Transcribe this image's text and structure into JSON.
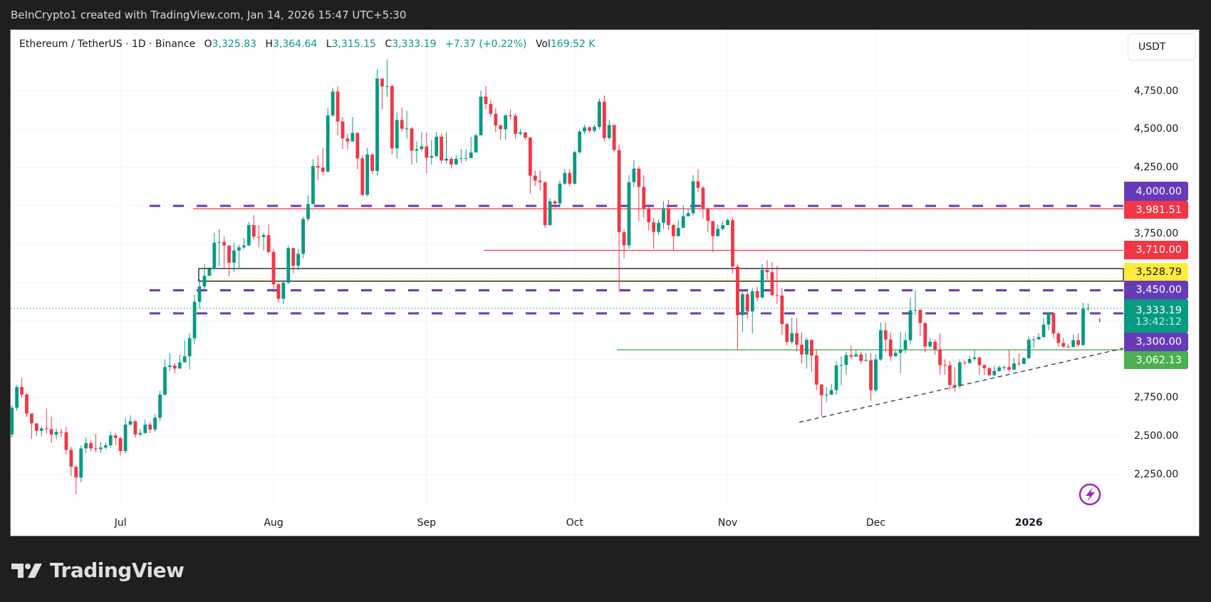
{
  "topbar": {
    "credit": "BeInCrypto1 created with TradingView.com, Jan 14, 2026 15:47 UTC+5:30"
  },
  "legend": {
    "symbol": "Ethereum / TetherUS · 1D · Binance",
    "o_label": "O",
    "o": "3,325.83",
    "h_label": "H",
    "h": "3,364.64",
    "l_label": "L",
    "l": "3,315.15",
    "c_label": "C",
    "c": "3,333.19",
    "change": "+7.37 (+0.22%)",
    "vol_label": "Vol",
    "vol": "169.52 K"
  },
  "currency_button": "USDT",
  "footer": {
    "logo_text": "TradingView"
  },
  "icons": {
    "logo": "tradingview-logo-icon",
    "alert": "lightning-icon"
  },
  "colors": {
    "up": "#089981",
    "down": "#f23645",
    "purple": "#673ab7",
    "red": "#f23645",
    "yellow": "#ffeb3b",
    "green": "#4caf50",
    "trend": "#333333"
  },
  "chart_data": {
    "type": "candlestick",
    "symbol": "ETHUSDT",
    "interval": "1D",
    "exchange": "Binance",
    "ylim": [
      2050,
      5000
    ],
    "y_ticks": [
      "4,750.00",
      "4,500.00",
      "4,250.00",
      "3,750.00",
      "2,750.00",
      "2,500.00",
      "2,250.00"
    ],
    "y_tick_values": [
      4750,
      4500,
      4250,
      3750,
      2750,
      2500,
      2250
    ],
    "x_ticks": [
      "Jul",
      "Aug",
      "Sep",
      "Oct",
      "Nov",
      "Dec",
      "2026"
    ],
    "grid": true,
    "first_open": 2510,
    "close": [
      2685,
      2820,
      2771,
      2647,
      2583,
      2535,
      2550,
      2545,
      2510,
      2527,
      2525,
      2410,
      2300,
      2230,
      2420,
      2455,
      2420,
      2415,
      2425,
      2440,
      2505,
      2488,
      2403,
      2575,
      2597,
      2510,
      2520,
      2575,
      2543,
      2620,
      2770,
      2950,
      2960,
      2940,
      2980,
      3020,
      3138,
      3375,
      3475,
      3545,
      3590,
      3760,
      3765,
      3742,
      3630,
      3710,
      3730,
      3742,
      3875,
      3800,
      3797,
      3810,
      3700,
      3490,
      3395,
      3500,
      3725,
      3610,
      3688,
      3915,
      4012,
      4260,
      4250,
      4223,
      4590,
      4745,
      4550,
      4440,
      4420,
      4475,
      4310,
      4072,
      4335,
      4228,
      4830,
      4778,
      4780,
      4375,
      4560,
      4503,
      4505,
      4360,
      4370,
      4388,
      4314,
      4325,
      4451,
      4296,
      4307,
      4270,
      4307,
      4310,
      4312,
      4348,
      4460,
      4712,
      4664,
      4600,
      4525,
      4500,
      4590,
      4588,
      4470,
      4480,
      4445,
      4197,
      4165,
      4155,
      3875,
      4030,
      4016,
      4145,
      4215,
      4145,
      4350,
      4485,
      4512,
      4490,
      4515,
      4680,
      4442,
      4527,
      4365,
      3829,
      3743,
      4155,
      4243,
      4124,
      3980,
      3893,
      3830,
      3890,
      3981,
      3875,
      3803,
      3857,
      3933,
      3953,
      4160,
      4118,
      3980,
      3902,
      3803,
      3850,
      3875,
      3907,
      3605,
      3288,
      3425,
      3312,
      3444,
      3403,
      3583,
      3568,
      3418,
      3416,
      3230,
      3114,
      3171,
      3096,
      3032,
      3127,
      3025,
      2836,
      2766,
      2770,
      2800,
      2960,
      2963,
      3028,
      3018,
      3033,
      2990,
      2995,
      2799,
      3000,
      3190,
      3130,
      3020,
      3042,
      3065,
      3125,
      3320,
      3322,
      3237,
      3084,
      3115,
      3064,
      2963,
      2961,
      2833,
      2826,
      2980,
      2977,
      3003,
      3012,
      2963,
      2942,
      2897,
      2924,
      2948,
      2950,
      2933,
      2973,
      2970,
      3008,
      3129,
      3130,
      3146,
      3227,
      3300,
      3168,
      3107,
      3083,
      3080,
      3125,
      3094,
      3330,
      3333.19
    ],
    "high": [
      2700,
      2835,
      2880,
      2780,
      2645,
      2585,
      2565,
      2680,
      2627,
      2550,
      2547,
      2560,
      2430,
      2310,
      2440,
      2490,
      2475,
      2515,
      2460,
      2460,
      2530,
      2520,
      2495,
      2620,
      2635,
      2605,
      2545,
      2610,
      2590,
      2645,
      2795,
      3000,
      3040,
      2975,
      3030,
      3120,
      3170,
      3420,
      3525,
      3620,
      3600,
      3825,
      3850,
      3800,
      3700,
      3760,
      3745,
      3790,
      3895,
      3940,
      3875,
      3825,
      3880,
      3720,
      3500,
      3515,
      3740,
      3725,
      3720,
      3930,
      4070,
      4305,
      4330,
      4375,
      4640,
      4770,
      4780,
      4580,
      4470,
      4580,
      4480,
      4330,
      4380,
      4340,
      4890,
      4830,
      4955,
      4795,
      4610,
      4640,
      4620,
      4515,
      4420,
      4480,
      4480,
      4430,
      4480,
      4470,
      4480,
      4320,
      4330,
      4370,
      4370,
      4450,
      4475,
      4750,
      4780,
      4690,
      4640,
      4530,
      4600,
      4630,
      4600,
      4500,
      4480,
      4450,
      4230,
      4230,
      4160,
      4050,
      4040,
      4165,
      4240,
      4240,
      4360,
      4500,
      4530,
      4520,
      4530,
      4700,
      4720,
      4560,
      4530,
      4400,
      3850,
      4200,
      4300,
      4260,
      4200,
      4000,
      3920,
      3910,
      4030,
      4040,
      3885,
      3910,
      4005,
      3980,
      4200,
      4240,
      4130,
      3990,
      3900,
      3880,
      3905,
      3920,
      3925,
      3620,
      3450,
      3440,
      3465,
      3475,
      3620,
      3645,
      3635,
      3610,
      3465,
      3240,
      3270,
      3270,
      3175,
      3140,
      3130,
      3060,
      2840,
      2820,
      2840,
      2990,
      3020,
      3050,
      3090,
      3060,
      3050,
      3040,
      3040,
      3030,
      3240,
      3240,
      3175,
      3060,
      3180,
      3175,
      3400,
      3450,
      3330,
      3240,
      3140,
      3130,
      3170,
      3000,
      2990,
      2950,
      3000,
      2995,
      3020,
      3060,
      3015,
      2965,
      2950,
      2960,
      2960,
      2960,
      3060,
      3010,
      3040,
      3015,
      3150,
      3150,
      3170,
      3270,
      3305,
      3305,
      3180,
      3140,
      3100,
      3160,
      3170,
      3370,
      3364.64
    ],
    "low": [
      2490,
      2665,
      2750,
      2625,
      2482,
      2500,
      2500,
      2515,
      2455,
      2480,
      2495,
      2380,
      2240,
      2120,
      2200,
      2390,
      2400,
      2395,
      2390,
      2415,
      2425,
      2440,
      2375,
      2385,
      2570,
      2490,
      2500,
      2515,
      2520,
      2530,
      2600,
      2765,
      2925,
      2910,
      2960,
      2990,
      2935,
      3100,
      3330,
      3450,
      3550,
      3580,
      3605,
      3590,
      3540,
      3570,
      3590,
      3720,
      3740,
      3780,
      3730,
      3710,
      3690,
      3440,
      3370,
      3360,
      3490,
      3560,
      3580,
      3660,
      3900,
      4010,
      4170,
      4200,
      4220,
      4580,
      4460,
      4370,
      4370,
      4440,
      4240,
      4065,
      4062,
      4210,
      4200,
      4630,
      4710,
      4335,
      4310,
      4485,
      4440,
      4270,
      4280,
      4355,
      4213,
      4270,
      4320,
      4275,
      4275,
      4245,
      4270,
      4280,
      4290,
      4330,
      4350,
      4460,
      4630,
      4580,
      4480,
      4430,
      4430,
      4560,
      4440,
      4460,
      4430,
      4080,
      4130,
      4100,
      3855,
      3870,
      3990,
      3990,
      4135,
      4130,
      4140,
      4340,
      4470,
      4480,
      4480,
      4500,
      4420,
      4430,
      4350,
      3440,
      3660,
      3720,
      4120,
      3900,
      3920,
      3840,
      3720,
      3810,
      3850,
      3840,
      3710,
      3800,
      3860,
      3930,
      3940,
      4090,
      3920,
      3830,
      3700,
      3800,
      3840,
      3880,
      3560,
      3060,
      3180,
      3265,
      3170,
      3380,
      3395,
      3520,
      3410,
      3360,
      3160,
      3090,
      3100,
      3050,
      2975,
      2940,
      2920,
      2800,
      2630,
      2720,
      2770,
      2770,
      2830,
      2900,
      3000,
      3020,
      2970,
      2985,
      2730,
      2790,
      2990,
      3045,
      2990,
      3020,
      2910,
      3040,
      3100,
      3290,
      3150,
      3045,
      3082,
      3030,
      2900,
      2900,
      2800,
      2790,
      2810,
      2960,
      2970,
      2990,
      2900,
      2900,
      2890,
      2890,
      2920,
      2930,
      2920,
      2945,
      2960,
      2985,
      3000,
      3075,
      3130,
      3140,
      3190,
      3140,
      3080,
      3075,
      3075,
      3085,
      3080,
      3085,
      3315.15
    ],
    "horizontal_levels": [
      {
        "price": 4000,
        "style": "dashed",
        "color": "#673ab7",
        "label": "4,000.00"
      },
      {
        "price": 3981.51,
        "style": "solid",
        "color": "#f23645",
        "label": "3,981.51"
      },
      {
        "price": 3710,
        "style": "solid",
        "color": "#f23645",
        "label": "3,710.00"
      },
      {
        "price": 3450,
        "style": "dashed",
        "color": "#673ab7",
        "label": "3,450.00"
      },
      {
        "price": 3300,
        "style": "dashed",
        "color": "#673ab7",
        "label": "3,300.00"
      },
      {
        "price": 3062.13,
        "style": "solid",
        "color": "#4caf50",
        "label": "3,062.13"
      }
    ],
    "zone": {
      "top": 3592,
      "bottom": 3510,
      "mid": 3528.79,
      "label": "3,528.79",
      "color": "#ffeb3b"
    },
    "last_price": {
      "price": 3333.19,
      "label": "3,333.19",
      "countdown": "13:42:12",
      "color": "#089981"
    },
    "trendline": {
      "from_price": 2590,
      "to_price": 3072,
      "style": "dashed"
    }
  }
}
